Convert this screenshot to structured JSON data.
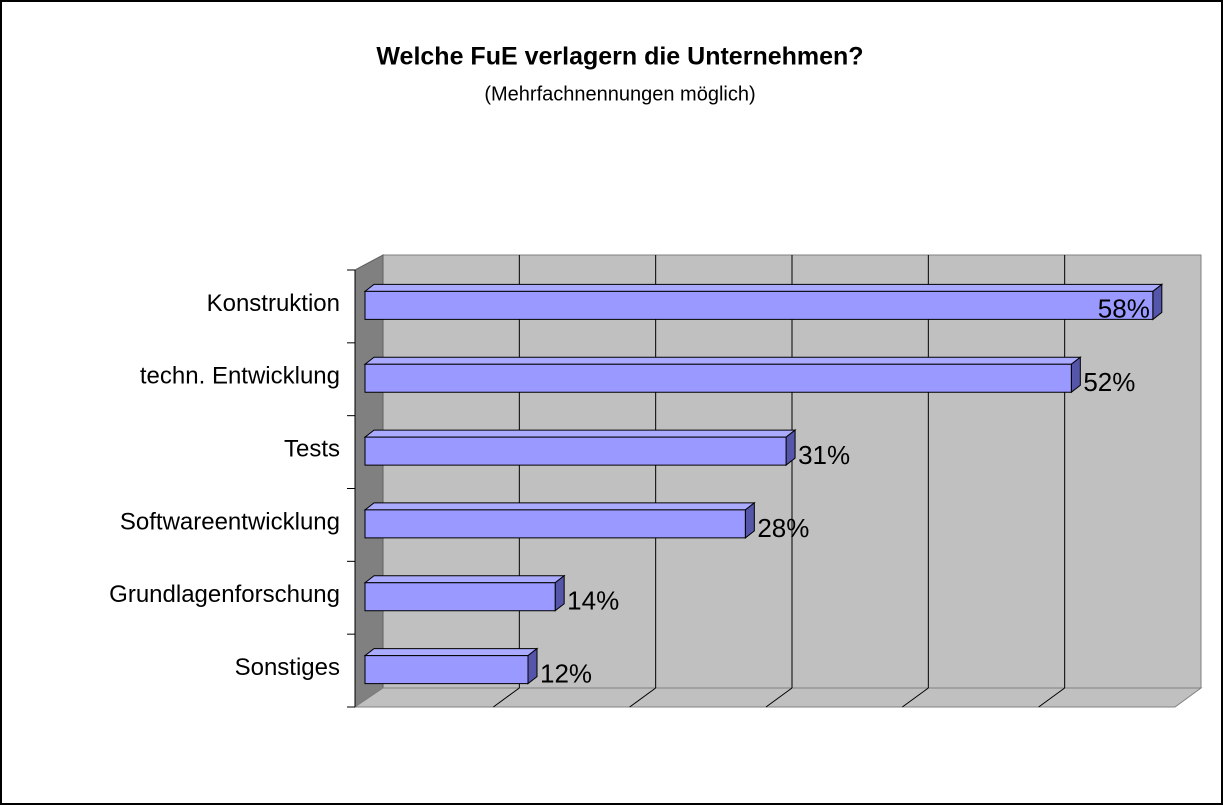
{
  "chart_data": {
    "type": "bar3d_horizontal",
    "title": "Welche FuE verlagern die Unternehmen?",
    "subtitle": "(Mehrfachnennungen möglich)",
    "categories": [
      "Konstruktion",
      "techn. Entwicklung",
      "Tests",
      "Softwareentwicklung",
      "Grundlagenforschung",
      "Sonstiges"
    ],
    "values": [
      58,
      52,
      31,
      28,
      14,
      12
    ],
    "value_labels": [
      "58%",
      "52%",
      "31%",
      "28%",
      "14%",
      "12%"
    ],
    "color": "#9999ff",
    "xlim": [
      0,
      60
    ],
    "xticks": [
      0,
      10,
      20,
      30,
      40,
      50,
      60
    ],
    "grid": true
  }
}
